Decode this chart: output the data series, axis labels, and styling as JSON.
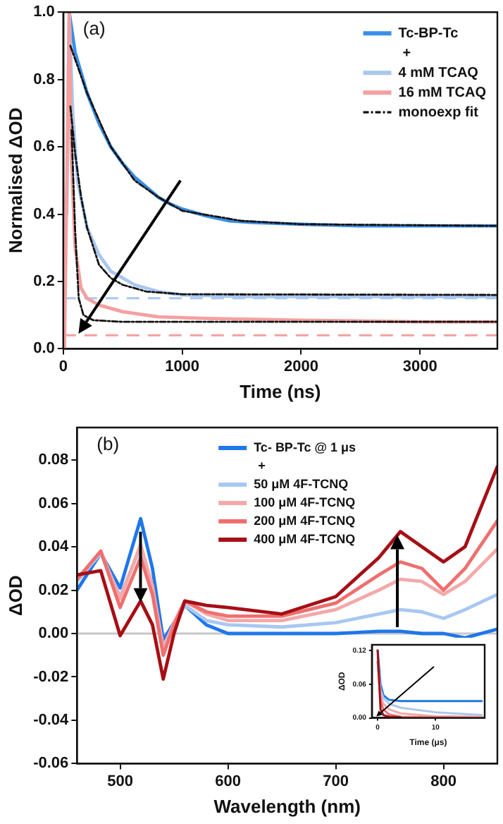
{
  "chart_data": [
    {
      "type": "line",
      "xlabel": "Time (ns)",
      "ylabel": "Normalised ΔOD",
      "annotations": [
        "(a)",
        "+"
      ],
      "legend": "top right",
      "marker": "none",
      "xlim": [
        0,
        3650
      ],
      "xticks": [
        0,
        1000,
        2000,
        3000
      ],
      "ylim": [
        0,
        1
      ],
      "yticks": [
        {
          "value": 0,
          "label": "0.0"
        },
        {
          "value": 0.2,
          "label": "0.2"
        },
        {
          "value": 0.4,
          "label": "0.4"
        },
        {
          "value": 0.6,
          "label": "0.6"
        },
        {
          "value": 0.8,
          "label": "0.8"
        },
        {
          "value": 1,
          "label": "1.0"
        }
      ],
      "ref_lines": [
        {
          "axis": "y",
          "value": 0.15,
          "color": "#a9c8f0",
          "line_style": "dashed"
        },
        {
          "axis": "y",
          "value": 0.04,
          "color": "#f4a0a0",
          "line_style": "dashed"
        }
      ],
      "series": [
        {
          "name": "Tc-BP-Tc",
          "color": "#3a8ee6",
          "x": [
            50,
            100,
            200,
            300,
            400,
            500,
            600,
            700,
            800,
            900,
            1000,
            1200,
            1400,
            1600,
            2000,
            2500,
            3000,
            3650
          ],
          "values": [
            1.0,
            0.88,
            0.76,
            0.67,
            0.6,
            0.55,
            0.51,
            0.48,
            0.45,
            0.43,
            0.415,
            0.395,
            0.38,
            0.375,
            0.37,
            0.365,
            0.365,
            0.365
          ]
        },
        {
          "name": "4 mM TCAQ",
          "color": "#a9c8f0",
          "x": [
            30,
            50,
            80,
            120,
            200,
            300,
            400,
            500,
            600,
            800,
            1000,
            1500,
            2000,
            3000,
            3650
          ],
          "values": [
            0.4,
            1.0,
            0.7,
            0.5,
            0.36,
            0.28,
            0.23,
            0.21,
            0.19,
            0.17,
            0.16,
            0.155,
            0.155,
            0.155,
            0.155
          ]
        },
        {
          "name": "16 mM TCAQ",
          "color": "#f4a0a0",
          "x": [
            10,
            30,
            50,
            70,
            100,
            150,
            200,
            300,
            500,
            800,
            1200,
            2000,
            3000,
            3650
          ],
          "values": [
            0.0,
            0.5,
            1.0,
            0.55,
            0.3,
            0.18,
            0.15,
            0.13,
            0.11,
            0.095,
            0.09,
            0.085,
            0.08,
            0.08
          ]
        },
        {
          "name": "monoexp fit",
          "color": "#111111",
          "line_style": "dashed",
          "x": [
            60,
            200,
            400,
            600,
            800,
            1000,
            1500,
            2000,
            3650
          ],
          "values": [
            0.9,
            0.76,
            0.6,
            0.5,
            0.45,
            0.41,
            0.38,
            0.37,
            0.365
          ]
        },
        {
          "color": "#111111",
          "line_style": "dashed",
          "x": [
            60,
            100,
            150,
            200,
            300,
            400,
            500,
            700,
            1000,
            3650
          ],
          "values": [
            0.72,
            0.58,
            0.45,
            0.36,
            0.25,
            0.21,
            0.19,
            0.17,
            0.162,
            0.16
          ]
        },
        {
          "color": "#111111",
          "line_style": "dashed",
          "x": [
            70,
            100,
            130,
            170,
            250,
            500,
            3650
          ],
          "values": [
            0.65,
            0.35,
            0.15,
            0.1,
            0.085,
            0.08,
            0.08
          ]
        }
      ]
    },
    {
      "type": "line",
      "xlabel": "Wavelength (nm)",
      "ylabel": "ΔOD",
      "annotations": [
        "(b)",
        "+"
      ],
      "legend": "top",
      "marker": "none",
      "xlim": [
        460,
        850
      ],
      "xticks": [
        500,
        600,
        700,
        800
      ],
      "ylim": [
        -0.06,
        0.095
      ],
      "yticks": [
        {
          "value": -0.06,
          "label": "-0.06"
        },
        {
          "value": -0.04,
          "label": "-0.04"
        },
        {
          "value": -0.02,
          "label": "-0.02"
        },
        {
          "value": 0,
          "label": "0.00"
        },
        {
          "value": 0.02,
          "label": "0.02"
        },
        {
          "value": 0.04,
          "label": "0.04"
        },
        {
          "value": 0.06,
          "label": "0.06"
        },
        {
          "value": 0.08,
          "label": "0.08"
        }
      ],
      "ref_lines": [
        {
          "axis": "y",
          "value": 0,
          "color": "#c8c8c8",
          "line_style": "solid"
        }
      ],
      "x": [
        460,
        482,
        500,
        519,
        530,
        540,
        550,
        560,
        580,
        600,
        650,
        700,
        740,
        760,
        780,
        800,
        820,
        850
      ],
      "series": [
        {
          "name": "Tc- BP-Tc @ 1 μs",
          "color": "#1f77e8",
          "values": [
            0.02,
            0.037,
            0.021,
            0.053,
            0.03,
            -0.003,
            0.005,
            0.013,
            0.004,
            0.0,
            0.0,
            0.0,
            0.001,
            0.001,
            0.0,
            0.0,
            -0.002,
            0.002
          ]
        },
        {
          "name": "50 μM 4F-TCNQ",
          "color": "#a8c8f2",
          "values": [
            0.024,
            0.037,
            0.017,
            0.04,
            0.02,
            -0.006,
            0.004,
            0.013,
            0.006,
            0.004,
            0.003,
            0.005,
            0.009,
            0.011,
            0.01,
            0.007,
            0.011,
            0.018
          ]
        },
        {
          "name": "100 μM 4F-TCNQ",
          "color": "#f4a9a9",
          "values": [
            0.025,
            0.038,
            0.016,
            0.041,
            0.022,
            -0.007,
            0.005,
            0.015,
            0.009,
            0.006,
            0.006,
            0.011,
            0.02,
            0.025,
            0.024,
            0.018,
            0.024,
            0.039
          ]
        },
        {
          "name": "200 μM 4F-TCNQ",
          "color": "#ef6f6f",
          "values": [
            0.025,
            0.038,
            0.012,
            0.035,
            0.018,
            -0.01,
            0.004,
            0.015,
            0.01,
            0.008,
            0.008,
            0.014,
            0.027,
            0.033,
            0.03,
            0.02,
            0.03,
            0.052
          ]
        },
        {
          "name": "400 μM 4F-TCNQ",
          "color": "#a50f15",
          "values": [
            0.027,
            0.029,
            -0.001,
            0.015,
            0.004,
            -0.021,
            0.0,
            0.015,
            0.013,
            0.012,
            0.009,
            0.017,
            0.035,
            0.047,
            0.04,
            0.033,
            0.04,
            0.077
          ]
        }
      ]
    },
    {
      "type": "line",
      "xlabel": "Time (μs)",
      "ylabel": "ΔOD",
      "marker": "none",
      "xlim": [
        -1,
        18.5
      ],
      "xticks": [
        0,
        10
      ],
      "ylim": [
        0,
        0.13
      ],
      "yticks": [
        {
          "value": 0,
          "label": "0.00"
        },
        {
          "value": 0.06,
          "label": "0.06"
        },
        {
          "value": 0.12,
          "label": "0.12"
        }
      ],
      "x": [
        0,
        0.5,
        1,
        2,
        4,
        10,
        18
      ],
      "series": [
        {
          "color": "#1f77e8",
          "values": [
            0.12,
            0.06,
            0.04,
            0.032,
            0.03,
            0.03,
            0.03
          ]
        },
        {
          "color": "#a8c8f2",
          "values": [
            0.1,
            0.05,
            0.035,
            0.025,
            0.018,
            0.01,
            0.005
          ]
        },
        {
          "color": "#f4a9a9",
          "values": [
            0.1,
            0.04,
            0.025,
            0.015,
            0.008,
            0.003,
            0.002
          ]
        },
        {
          "color": "#ef6f6f",
          "values": [
            0.1,
            0.03,
            0.015,
            0.006,
            0.002,
            0.001,
            0.0
          ]
        },
        {
          "color": "#a50f15",
          "values": [
            0.12,
            0.015,
            0.005,
            0.002,
            0.001,
            null,
            null
          ]
        }
      ]
    }
  ]
}
